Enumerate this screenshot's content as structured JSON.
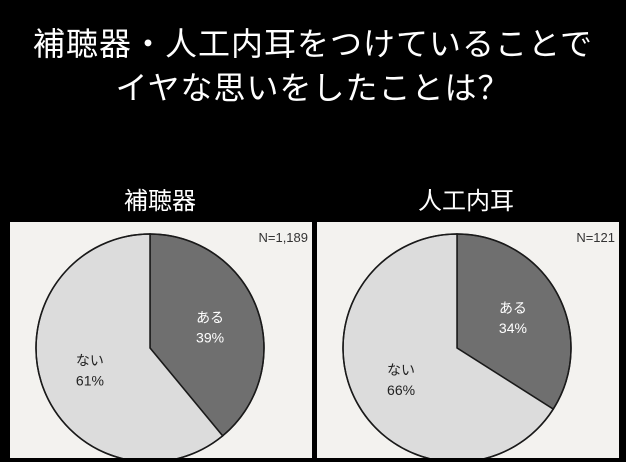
{
  "title_line1": "補聴器・人工内耳をつけていることで",
  "title_line2": "イヤな思いをしたことは？",
  "colors": {
    "yes": "#6f6f6f",
    "no": "#dcdcdc",
    "edge": "#1a1a1a",
    "panel": "#f3f2ef"
  },
  "chart_data": [
    {
      "type": "pie",
      "title": "補聴器",
      "n_label": "N=1,189",
      "slices": [
        {
          "label": "ある",
          "value": 39,
          "value_label": "39%"
        },
        {
          "label": "ない",
          "value": 61,
          "value_label": "61%"
        }
      ]
    },
    {
      "type": "pie",
      "title": "人工内耳",
      "n_label": "N=121",
      "slices": [
        {
          "label": "ある",
          "value": 34,
          "value_label": "34%"
        },
        {
          "label": "ない",
          "value": 66,
          "value_label": "66%"
        }
      ]
    }
  ]
}
